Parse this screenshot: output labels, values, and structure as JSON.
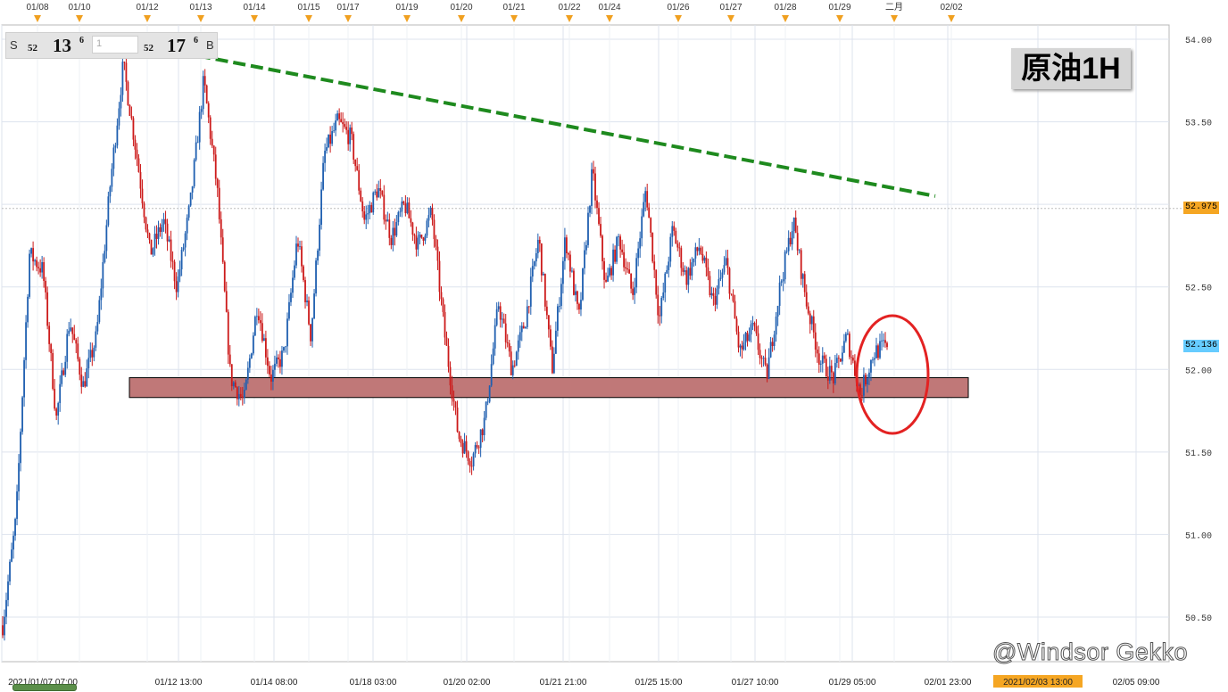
{
  "quote": {
    "sell_label": "S",
    "sell_small": "52",
    "sell_big": "13",
    "sell_sup": "6",
    "lot_value": "1",
    "buy_small": "52",
    "buy_big": "17",
    "buy_sup": "6",
    "buy_label": "B"
  },
  "title": "原油1H",
  "watermark": "@Windsor Gekko",
  "price_tags": {
    "line_price": "52.975",
    "current_price": "52.136",
    "line_color": "#f5a623",
    "current_color": "#66ccff"
  },
  "top_date_labels": [
    "01/08",
    "01/10",
    "01/12",
    "01/13",
    "01/14",
    "01/15",
    "01/17",
    "01/19",
    "01/20",
    "01/21",
    "01/22",
    "01/24",
    "01/26",
    "01/27",
    "01/28",
    "01/29",
    "二月",
    "02/02"
  ],
  "chart_data": {
    "type": "candlestick",
    "title": "原油1H",
    "y_ticks": [
      "54.00",
      "53.50",
      "53.00",
      "52.50",
      "52.00",
      "51.50",
      "51.00",
      "50.50"
    ],
    "x_tick_labels": [
      "2021/01/07 07:00",
      "01/12 13:00",
      "01/14 08:00",
      "01/18 03:00",
      "01/20 02:00",
      "01/21 21:00",
      "01/25 15:00",
      "01/27 10:00",
      "01/29 05:00",
      "02/01 23:00",
      "2021/02/03 13:00",
      "02/05 09:00"
    ],
    "highlighted_x_label": "2021/02/03 13:00",
    "ylim": [
      50.3,
      54.1
    ],
    "last_price": 52.136,
    "reference_price": 52.975,
    "support_zone": {
      "low": 51.83,
      "high": 51.95,
      "color": "#c07878"
    },
    "resistance_trendline": {
      "start": 53.9,
      "end": 53.05,
      "color": "#1e8a1e"
    },
    "colors": {
      "up": "#1f5fb0",
      "down": "#cc1a1a"
    },
    "swing_points": [
      50.45,
      51.1,
      52.7,
      52.6,
      51.7,
      52.3,
      51.9,
      52.2,
      53.1,
      53.85,
      53.3,
      52.7,
      52.9,
      52.5,
      53.0,
      53.75,
      53.1,
      51.95,
      51.8,
      52.4,
      51.95,
      52.1,
      52.8,
      52.2,
      53.3,
      53.5,
      53.4,
      52.9,
      53.1,
      52.8,
      53.0,
      52.75,
      52.95,
      52.2,
      51.6,
      51.45,
      51.7,
      52.4,
      52.0,
      52.3,
      52.8,
      52.0,
      52.8,
      52.3,
      53.2,
      52.5,
      52.8,
      52.45,
      53.1,
      52.3,
      52.85,
      52.55,
      52.75,
      52.4,
      52.65,
      52.1,
      52.25,
      51.95,
      52.5,
      52.9,
      52.4,
      52.05,
      51.95,
      52.2,
      51.85,
      52.1,
      52.15
    ]
  }
}
